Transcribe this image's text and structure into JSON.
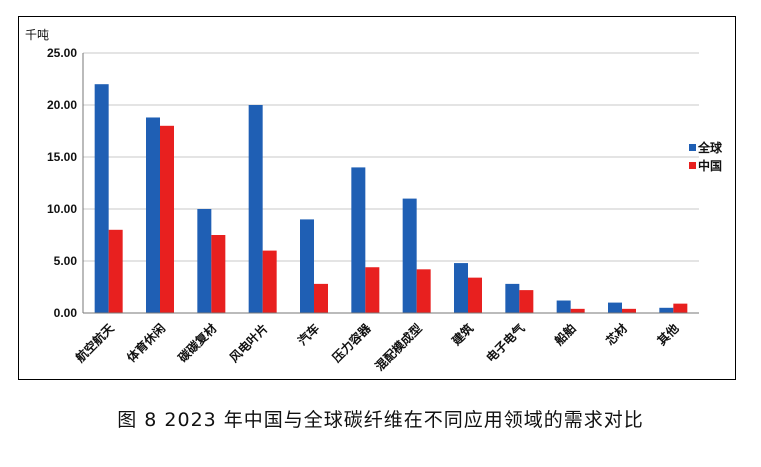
{
  "chart_data": {
    "type": "bar",
    "y_unit": "千吨",
    "ylim": [
      0,
      25
    ],
    "y_ticks": [
      "0.00",
      "5.00",
      "10.00",
      "15.00",
      "20.00",
      "25.00"
    ],
    "y_tick_values": [
      0,
      5,
      10,
      15,
      20,
      25
    ],
    "grid": true,
    "legend_position": "right",
    "categories": [
      "航空航天",
      "体育休闲",
      "碳碳复材",
      "风电叶片",
      "汽车",
      "压力容器",
      "混配模成型",
      "建筑",
      "电子电气",
      "船舶",
      "芯材",
      "其他"
    ],
    "series": [
      {
        "name": "全球",
        "color": "#1f5fb4",
        "values": [
          22.0,
          18.8,
          10.0,
          20.0,
          9.0,
          14.0,
          11.0,
          4.8,
          2.8,
          1.2,
          1.0,
          0.5
        ]
      },
      {
        "name": "中国",
        "color": "#e8201f",
        "values": [
          8.0,
          18.0,
          7.5,
          6.0,
          2.8,
          4.4,
          4.2,
          3.4,
          2.2,
          0.4,
          0.4,
          0.9
        ]
      }
    ]
  },
  "caption": "图 8  2023 年中国与全球碳纤维在不同应用领域的需求对比"
}
